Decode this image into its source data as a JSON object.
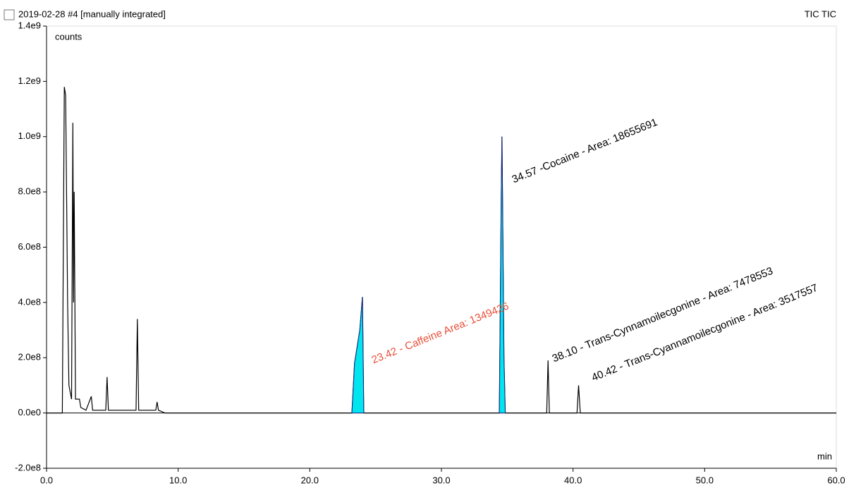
{
  "chart_data": {
    "type": "line",
    "title": "2019-02-28 #4 [manually integrated]",
    "trace_label": "TIC TIC",
    "y_label": "counts",
    "x_label": "min",
    "xlim": [
      0,
      60
    ],
    "ylim": [
      -200000000,
      1400000000
    ],
    "xticks": [
      {
        "value": 0,
        "label": "0.0"
      },
      {
        "value": 10,
        "label": "10.0"
      },
      {
        "value": 20,
        "label": "20.0"
      },
      {
        "value": 30,
        "label": "30.0"
      },
      {
        "value": 40,
        "label": "40.0"
      },
      {
        "value": 50,
        "label": "50.0"
      },
      {
        "value": 60,
        "label": "60.0"
      }
    ],
    "yticks": [
      {
        "value": -200000000,
        "label": "-2.0e8"
      },
      {
        "value": 0,
        "label": "0.0e0"
      },
      {
        "value": 200000000,
        "label": "2.0e8"
      },
      {
        "value": 400000000,
        "label": "4.0e8"
      },
      {
        "value": 600000000,
        "label": "6.0e8"
      },
      {
        "value": 800000000,
        "label": "8.0e8"
      },
      {
        "value": 1000000000,
        "label": "1.0e9"
      },
      {
        "value": 1200000000,
        "label": "1.2e9"
      },
      {
        "value": 1400000000,
        "label": "1.4e9"
      }
    ],
    "series": [
      {
        "name": "TIC",
        "color": "#000000",
        "x": [
          0,
          1.2,
          1.35,
          1.45,
          1.55,
          1.6,
          1.7,
          1.9,
          2.0,
          2.05,
          2.1,
          2.2,
          2.5,
          2.6,
          3.0,
          3.4,
          3.5,
          4.5,
          4.6,
          4.7,
          6.8,
          6.9,
          7.0,
          8.3,
          8.4,
          8.5,
          9,
          23.2,
          23.4,
          23.8,
          24.0,
          24.1,
          34.4,
          34.55,
          34.6,
          34.75,
          34.85,
          38.0,
          38.1,
          38.2,
          40.3,
          40.42,
          40.55,
          60
        ],
        "values": [
          0,
          0,
          1180000000,
          1150000000,
          660000000,
          400000000,
          100000000,
          50000000,
          1050000000,
          400000000,
          800000000,
          50000000,
          50000000,
          20000000,
          10000000,
          60000000,
          10000000,
          10000000,
          130000000,
          10000000,
          10000000,
          340000000,
          10000000,
          10000000,
          40000000,
          10000000,
          0,
          0,
          180000000,
          300000000,
          420000000,
          0,
          0,
          800000000,
          1000000000,
          200000000,
          0,
          0,
          190000000,
          0,
          0,
          100000000,
          0,
          0
        ]
      },
      {
        "name": "Caffeine",
        "color": "#00e5ee",
        "x": [
          23.2,
          23.4,
          23.8,
          24.0,
          24.1
        ],
        "values": [
          0,
          180000000,
          300000000,
          420000000,
          0
        ]
      },
      {
        "name": "Cocaine",
        "color": "#00e5ee",
        "x": [
          34.4,
          34.55,
          34.6,
          34.75,
          34.85
        ],
        "values": [
          0,
          800000000,
          1000000000,
          200000000,
          0
        ]
      }
    ],
    "annotations": [
      "23.42 - Caffeine Area: 1349426",
      "34.57 -Cocaine - Area: 18655691",
      "38.10 - Trans-Cynnamoilecgonine - Area: 7478553",
      "40.42 - Trans-Cyannamoilecgonine - Area: 3517557"
    ]
  }
}
